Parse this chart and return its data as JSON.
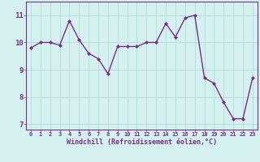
{
  "x": [
    0,
    1,
    2,
    3,
    4,
    5,
    6,
    7,
    8,
    9,
    10,
    11,
    12,
    13,
    14,
    15,
    16,
    17,
    18,
    19,
    20,
    21,
    22,
    23
  ],
  "y": [
    9.8,
    10.0,
    10.0,
    9.9,
    10.8,
    10.1,
    9.6,
    9.4,
    8.85,
    9.85,
    9.85,
    9.85,
    10.0,
    10.0,
    10.7,
    10.2,
    10.9,
    11.0,
    8.7,
    8.5,
    7.8,
    7.2,
    7.2,
    8.7
  ],
  "line_color": "#7b2d8b",
  "marker": "D",
  "marker_size": 2.0,
  "line_width": 1.0,
  "bg_color": "#d4f0ef",
  "grid_color": "#b0dbd9",
  "xlabel": "Windchill (Refroidissement éolien,°C)",
  "xlabel_color": "#7b2d8b",
  "xtick_labels": [
    "0",
    "1",
    "2",
    "3",
    "4",
    "5",
    "6",
    "7",
    "8",
    "9",
    "10",
    "11",
    "12",
    "13",
    "14",
    "15",
    "16",
    "17",
    "18",
    "19",
    "20",
    "21",
    "22",
    "23"
  ],
  "ytick_labels": [
    "7",
    "8",
    "9",
    "10",
    "11"
  ],
  "yticks": [
    7,
    8,
    9,
    10,
    11
  ],
  "ylim": [
    6.8,
    11.5
  ],
  "xlim": [
    -0.5,
    23.5
  ],
  "tick_color": "#7b2d8b",
  "spine_color": "#7b2d8b"
}
